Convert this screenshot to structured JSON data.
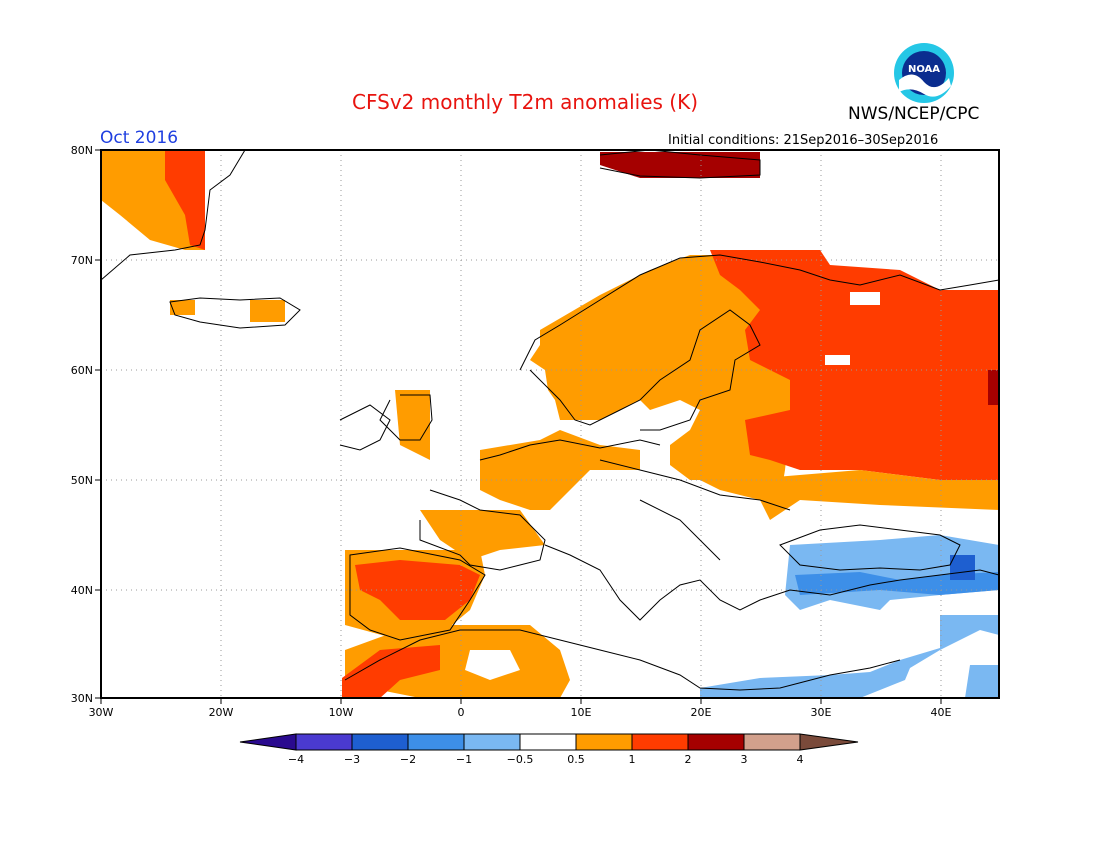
{
  "header": {
    "title": "CFSv2 monthly T2m anomalies (K)",
    "agency": "NWS/NCEP/CPC",
    "month": "Oct 2016",
    "initial_conditions": "Initial conditions: 21Sep2016–30Sep2016",
    "logo_text": "NOAA"
  },
  "map": {
    "lon_ticks": [
      "30W",
      "20W",
      "10W",
      "0",
      "10E",
      "20E",
      "30E",
      "40E"
    ],
    "lat_ticks": [
      "80N",
      "70N",
      "60N",
      "50N",
      "40N",
      "30N"
    ],
    "grid": true
  },
  "colorbar": {
    "labels": [
      "−4",
      "−3",
      "−2",
      "−1",
      "−0.5",
      "0.5",
      "1",
      "2",
      "3",
      "4"
    ],
    "colors": {
      "below_-4": "#2a0a8f",
      "-4_-3": "#4a3ad0",
      "-3_-2": "#1e5fd0",
      "-2_-1": "#3d8fe8",
      "-1_-0.5": "#7ab8f2",
      "-0.5_0.5": "#ffffff",
      "0.5_1": "#ff9c00",
      "1_2": "#ff3c00",
      "2_3": "#a50000",
      "3_4": "#d2a08c",
      "above_4": "#7a4a3a"
    }
  }
}
